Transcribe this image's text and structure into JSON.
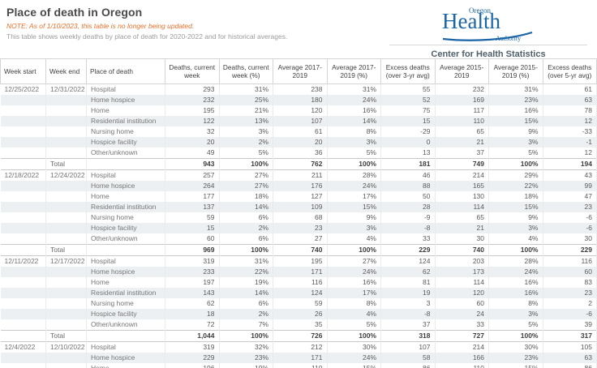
{
  "header": {
    "title": "Place of death in Oregon",
    "note": "NOTE: As of 1/10/2023, this table is no longer being updated.",
    "subtitle": "This table shows weekly deaths by place of death for 2020-2022 and for historical averages.",
    "logo": {
      "top": "Oregon",
      "main": "Health",
      "bottom": "Authority"
    },
    "org": "Center for Health Statistics"
  },
  "colors": {
    "brand_blue": "#1b65a6",
    "note_orange": "#e8702a",
    "stripe_row": "#edf0f3"
  },
  "chart_data": {
    "type": "table",
    "title": "Place of death in Oregon",
    "total_label": "Total",
    "columns": [
      "Week start",
      "Week end",
      "Place of death",
      "Deaths, current week",
      "Deaths, current week (%)",
      "Average 2017-2019",
      "Average 2017-2019 (%)",
      "Excess deaths (over 3-yr avg)",
      "Average 2015-2019",
      "Average 2015-2019 (%)",
      "Excess deaths (over 5-yr avg)"
    ],
    "groups": [
      {
        "week_start": "12/25/2022",
        "week_end": "12/31/2022",
        "rows": [
          {
            "place": "Hospital",
            "values": [
              "293",
              "31%",
              "238",
              "31%",
              "55",
              "232",
              "31%",
              "61"
            ]
          },
          {
            "place": "Home hospice",
            "values": [
              "232",
              "25%",
              "180",
              "24%",
              "52",
              "169",
              "23%",
              "63"
            ]
          },
          {
            "place": "Home",
            "values": [
              "195",
              "21%",
              "120",
              "16%",
              "75",
              "117",
              "16%",
              "78"
            ]
          },
          {
            "place": "Residential institution",
            "values": [
              "122",
              "13%",
              "107",
              "14%",
              "15",
              "110",
              "15%",
              "12"
            ]
          },
          {
            "place": "Nursing home",
            "values": [
              "32",
              "3%",
              "61",
              "8%",
              "-29",
              "65",
              "9%",
              "-33"
            ]
          },
          {
            "place": "Hospice facility",
            "values": [
              "20",
              "2%",
              "20",
              "3%",
              "0",
              "21",
              "3%",
              "-1"
            ]
          },
          {
            "place": "Other/unknown",
            "values": [
              "49",
              "5%",
              "36",
              "5%",
              "13",
              "37",
              "5%",
              "12"
            ]
          }
        ],
        "total": [
          "943",
          "100%",
          "762",
          "100%",
          "181",
          "749",
          "100%",
          "194"
        ]
      },
      {
        "week_start": "12/18/2022",
        "week_end": "12/24/2022",
        "rows": [
          {
            "place": "Hospital",
            "values": [
              "257",
              "27%",
              "211",
              "28%",
              "46",
              "214",
              "29%",
              "43"
            ]
          },
          {
            "place": "Home hospice",
            "values": [
              "264",
              "27%",
              "176",
              "24%",
              "88",
              "165",
              "22%",
              "99"
            ]
          },
          {
            "place": "Home",
            "values": [
              "177",
              "18%",
              "127",
              "17%",
              "50",
              "130",
              "18%",
              "47"
            ]
          },
          {
            "place": "Residential institution",
            "values": [
              "137",
              "14%",
              "109",
              "15%",
              "28",
              "114",
              "15%",
              "23"
            ]
          },
          {
            "place": "Nursing home",
            "values": [
              "59",
              "6%",
              "68",
              "9%",
              "-9",
              "65",
              "9%",
              "-6"
            ]
          },
          {
            "place": "Hospice facility",
            "values": [
              "15",
              "2%",
              "23",
              "3%",
              "-8",
              "21",
              "3%",
              "-6"
            ]
          },
          {
            "place": "Other/unknown",
            "values": [
              "60",
              "6%",
              "27",
              "4%",
              "33",
              "30",
              "4%",
              "30"
            ]
          }
        ],
        "total": [
          "969",
          "100%",
          "740",
          "100%",
          "229",
          "740",
          "100%",
          "229"
        ]
      },
      {
        "week_start": "12/11/2022",
        "week_end": "12/17/2022",
        "rows": [
          {
            "place": "Hospital",
            "values": [
              "319",
              "31%",
              "195",
              "27%",
              "124",
              "203",
              "28%",
              "116"
            ]
          },
          {
            "place": "Home hospice",
            "values": [
              "233",
              "22%",
              "171",
              "24%",
              "62",
              "173",
              "24%",
              "60"
            ]
          },
          {
            "place": "Home",
            "values": [
              "197",
              "19%",
              "116",
              "16%",
              "81",
              "114",
              "16%",
              "83"
            ]
          },
          {
            "place": "Residential institution",
            "values": [
              "143",
              "14%",
              "124",
              "17%",
              "19",
              "120",
              "16%",
              "23"
            ]
          },
          {
            "place": "Nursing home",
            "values": [
              "62",
              "6%",
              "59",
              "8%",
              "3",
              "60",
              "8%",
              "2"
            ]
          },
          {
            "place": "Hospice facility",
            "values": [
              "18",
              "2%",
              "26",
              "4%",
              "-8",
              "24",
              "3%",
              "-6"
            ]
          },
          {
            "place": "Other/unknown",
            "values": [
              "72",
              "7%",
              "35",
              "5%",
              "37",
              "33",
              "5%",
              "39"
            ]
          }
        ],
        "total": [
          "1,044",
          "100%",
          "726",
          "100%",
          "318",
          "727",
          "100%",
          "317"
        ]
      },
      {
        "week_start": "12/4/2022",
        "week_end": "12/10/2022",
        "rows": [
          {
            "place": "Hospital",
            "values": [
              "319",
              "32%",
              "212",
              "30%",
              "107",
              "214",
              "30%",
              "105"
            ]
          },
          {
            "place": "Home hospice",
            "values": [
              "229",
              "23%",
              "171",
              "24%",
              "58",
              "166",
              "23%",
              "63"
            ]
          },
          {
            "place": "Home",
            "values": [
              "196",
              "19%",
              "110",
              "15%",
              "86",
              "110",
              "15%",
              "86"
            ]
          }
        ]
      }
    ]
  }
}
